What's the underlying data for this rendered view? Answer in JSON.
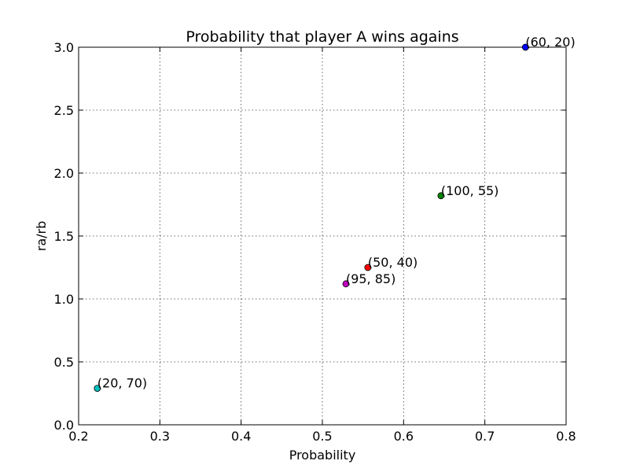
{
  "chart_data": {
    "type": "scatter",
    "title": "Probability that player A wins agains",
    "xlabel": "Probability",
    "ylabel": "ra/rb",
    "xlim": [
      0.2,
      0.8
    ],
    "ylim": [
      0.0,
      3.0
    ],
    "xticks": [
      "0.2",
      "0.3",
      "0.4",
      "0.5",
      "0.6",
      "0.7",
      "0.8"
    ],
    "yticks": [
      "0.0",
      "0.5",
      "1.0",
      "1.5",
      "2.0",
      "2.5",
      "3.0"
    ],
    "grid": true,
    "points": [
      {
        "x": 0.75,
        "y": 3.0,
        "label": "(60, 20)",
        "color": "#0000ff"
      },
      {
        "x": 0.646,
        "y": 1.82,
        "label": "(100, 55)",
        "color": "#008000"
      },
      {
        "x": 0.556,
        "y": 1.25,
        "label": "(50, 40)",
        "color": "#ff0000"
      },
      {
        "x": 0.529,
        "y": 1.12,
        "label": "(95, 85)",
        "color": "#bf00bf"
      },
      {
        "x": 0.223,
        "y": 0.29,
        "label": "(20, 70)",
        "color": "#00bfbf"
      }
    ]
  }
}
